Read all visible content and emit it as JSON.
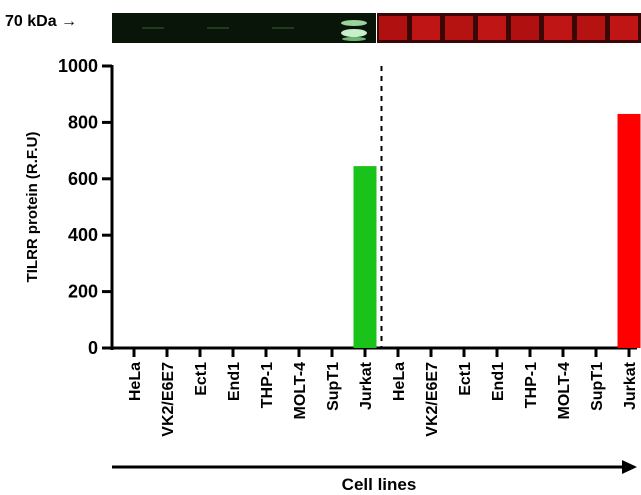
{
  "blot": {
    "label": "70 kDa"
  },
  "chart_data": {
    "type": "bar",
    "categories": [
      "HeLa",
      "VK2/E6E7",
      "Ect1",
      "End1",
      "THP-1",
      "MOLT-4",
      "SupT1",
      "Jurkat",
      "HeLa",
      "VK2/E6E7",
      "Ect1",
      "End1",
      "THP-1",
      "MOLT-4",
      "SupT1",
      "Jurkat"
    ],
    "values": [
      0,
      0,
      0,
      0,
      0,
      0,
      0,
      645,
      0,
      0,
      0,
      0,
      0,
      0,
      0,
      830
    ],
    "ylabel": "TILRR protein (R.F.U)",
    "xlabel": "Cell lines",
    "ylim": [
      0,
      1000
    ],
    "yticks": [
      0,
      200,
      400,
      600,
      800,
      1000
    ],
    "bar_colors": [
      "#1ac31a",
      "#1ac31a",
      "#1ac31a",
      "#1ac31a",
      "#1ac31a",
      "#1ac31a",
      "#1ac31a",
      "#1ac31a",
      "#ff0000",
      "#ff0000",
      "#ff0000",
      "#ff0000",
      "#ff0000",
      "#ff0000",
      "#ff0000",
      "#ff0000"
    ],
    "grid": false,
    "divider": "dashed line between the two groups of eight"
  }
}
